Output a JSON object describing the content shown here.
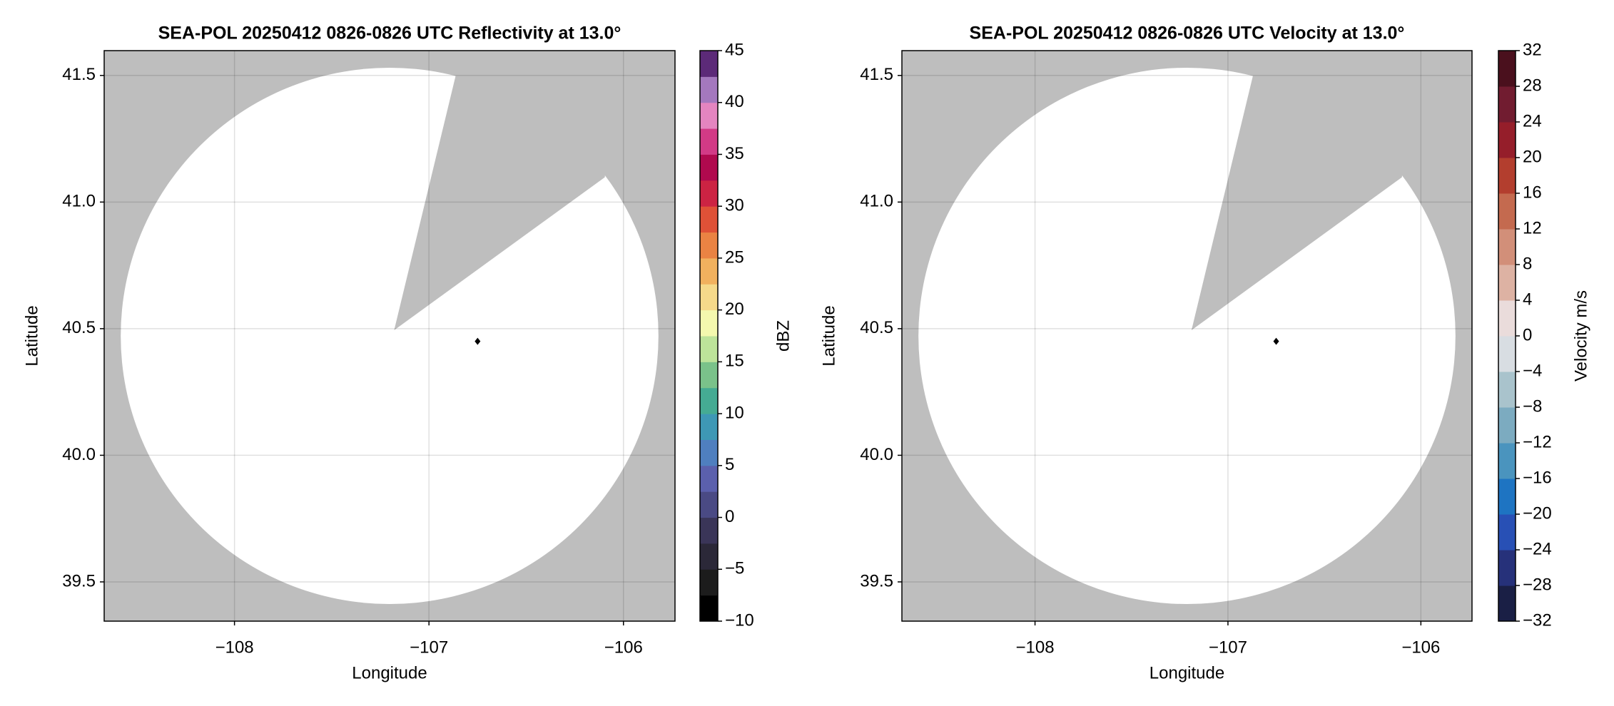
{
  "chart_data": [
    {
      "type": "ppi",
      "title": "SEA-POL 20250412 0826-0826 UTC Reflectivity at 13.0°",
      "xlabel": "Longitude",
      "ylabel": "Latitude",
      "xlim": [
        -108.67,
        -105.735
      ],
      "ylim": [
        39.345,
        41.598
      ],
      "xticks": [
        {
          "value": -108,
          "label": "−108"
        },
        {
          "value": -107,
          "label": "−107"
        },
        {
          "value": -106,
          "label": "−106"
        }
      ],
      "yticks": [
        39.5,
        {
          "value": 40,
          "label": "40.0"
        },
        40.5,
        {
          "value": 41,
          "label": "41.0"
        },
        41.5
      ],
      "grid": true,
      "marker": {
        "x": -106.75,
        "y": 40.45
      },
      "colorbar": {
        "label": "dBZ",
        "lim": [
          -10,
          45
        ],
        "ticks": [
          {
            "value": -10,
            "label": "−10"
          },
          {
            "value": -5,
            "label": "−5"
          },
          0,
          5,
          10,
          15,
          20,
          25,
          30,
          35,
          40,
          45
        ],
        "colors": [
          "#000000",
          "#1c1c1c",
          "#2b2838",
          "#3a3558",
          "#4a4a84",
          "#5b60ad",
          "#4f7fbf",
          "#3e98b5",
          "#45ab93",
          "#7ac28a",
          "#bde39a",
          "#f4f8ae",
          "#f5d98a",
          "#f1b15e",
          "#ea8343",
          "#df5137",
          "#cc2343",
          "#b0094e",
          "#d23a86",
          "#e485c0",
          "#a478be",
          "#5c2a78"
        ]
      }
    },
    {
      "type": "ppi",
      "title": "SEA-POL 20250412 0826-0826 UTC Velocity at 13.0°",
      "xlabel": "Longitude",
      "ylabel": "Latitude",
      "xlim": [
        -108.69,
        -105.735
      ],
      "ylim": [
        39.345,
        41.598
      ],
      "xticks": [
        {
          "value": -108,
          "label": "−108"
        },
        {
          "value": -107,
          "label": "−107"
        },
        {
          "value": -106,
          "label": "−106"
        }
      ],
      "yticks": [
        39.5,
        {
          "value": 40,
          "label": "40.0"
        },
        40.5,
        {
          "value": 41,
          "label": "41.0"
        },
        41.5
      ],
      "grid": true,
      "marker": {
        "x": -106.75,
        "y": 40.45
      },
      "colorbar": {
        "label": "Velocity m/s",
        "lim": [
          -32,
          32
        ],
        "ticks": [
          {
            "value": -32,
            "label": "−32"
          },
          {
            "value": -28,
            "label": "−28"
          },
          {
            "value": -24,
            "label": "−24"
          },
          {
            "value": -20,
            "label": "−20"
          },
          {
            "value": -16,
            "label": "−16"
          },
          {
            "value": -12,
            "label": "−12"
          },
          {
            "value": -8,
            "label": "−8"
          },
          {
            "value": -4,
            "label": "−4"
          },
          0,
          4,
          8,
          12,
          16,
          20,
          24,
          28,
          32
        ],
        "colors": [
          "#1a1f45",
          "#26317a",
          "#2850b5",
          "#1e74c2",
          "#4a94be",
          "#7cabc0",
          "#a9c3cc",
          "#d8dde2",
          "#eadcdb",
          "#ddb2a3",
          "#d28f79",
          "#c46a4f",
          "#b33e2e",
          "#951e2a",
          "#711c30",
          "#4a101d"
        ]
      }
    }
  ]
}
